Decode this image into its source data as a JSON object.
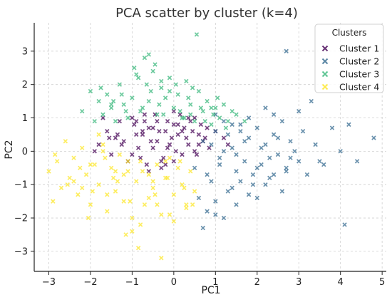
{
  "chart_data": {
    "type": "scatter",
    "title": "PCA scatter by cluster (k=4)",
    "xlabel": "PC1",
    "ylabel": "PC2",
    "xlim": [
      -3.35,
      5.1
    ],
    "ylim": [
      -3.6,
      3.85
    ],
    "xticks": [
      -3,
      -2,
      -1,
      0,
      1,
      2,
      3,
      4,
      5
    ],
    "yticks": [
      -3,
      -2,
      -1,
      0,
      1,
      2,
      3
    ],
    "grid": true,
    "marker": "x",
    "legend": {
      "title": "Clusters",
      "position": "top-right"
    },
    "series": [
      {
        "name": "Cluster 1",
        "color": "#440154",
        "x": [
          -1.8,
          -1.6,
          -1.5,
          -1.3,
          -1.2,
          -1.0,
          -0.9,
          -0.8,
          -0.7,
          -0.6,
          -0.5,
          -0.4,
          -0.3,
          -0.2,
          -0.1,
          0.0,
          0.1,
          0.2,
          0.3,
          0.4,
          0.5,
          0.6,
          0.7,
          -1.7,
          -1.4,
          -1.1,
          -0.95,
          -0.85,
          -0.75,
          -0.65,
          -0.55,
          -0.45,
          -0.35,
          -0.25,
          -0.15,
          -0.05,
          0.05,
          0.15,
          0.25,
          0.35,
          0.45,
          0.55,
          0.65,
          0.75,
          0.85,
          -1.9,
          -1.25,
          -0.7,
          -0.3,
          0.1,
          0.5,
          0.8,
          -1.55,
          -0.9,
          -0.4,
          0.2,
          0.6,
          -1.0,
          -0.5,
          0.0,
          -1.35,
          -0.15,
          0.35,
          -0.75,
          1.0,
          1.2,
          1.3,
          -0.6,
          -0.2,
          0.0
        ],
        "y": [
          0.2,
          0.6,
          -0.1,
          0.9,
          0.3,
          1.0,
          0.5,
          -0.2,
          1.1,
          0.7,
          0.1,
          0.9,
          -0.3,
          0.6,
          0.2,
          1.2,
          0.8,
          -0.1,
          0.4,
          0.9,
          0.0,
          0.5,
          0.3,
          1.0,
          0.4,
          -0.3,
          0.8,
          0.1,
          0.5,
          -0.4,
          0.3,
          1.1,
          0.6,
          -0.2,
          0.9,
          0.4,
          0.0,
          1.1,
          0.7,
          0.2,
          0.6,
          -0.1,
          0.8,
          0.4,
          0.1,
          0.0,
          0.2,
          0.9,
          -0.5,
          0.5,
          1.0,
          0.7,
          0.4,
          0.9,
          0.3,
          0.6,
          0.2,
          -0.1,
          0.7,
          -0.3,
          0.5,
          0.1,
          1.0,
          0.6,
          0.6,
          0.4,
          0.2,
          -0.6,
          -0.4,
          0.8
        ]
      },
      {
        "name": "Cluster 2",
        "color": "#31688e",
        "x": [
          0.5,
          0.7,
          0.9,
          1.0,
          1.1,
          1.2,
          1.3,
          1.4,
          1.5,
          1.6,
          1.7,
          1.8,
          1.9,
          2.0,
          2.1,
          2.2,
          2.3,
          2.4,
          2.5,
          2.6,
          2.7,
          2.8,
          2.9,
          3.0,
          3.1,
          3.2,
          3.4,
          3.6,
          3.8,
          4.0,
          4.2,
          4.4,
          4.8,
          0.6,
          0.8,
          1.0,
          1.2,
          1.4,
          1.6,
          1.8,
          2.0,
          2.2,
          2.4,
          2.6,
          2.8,
          3.0,
          3.3,
          0.9,
          1.1,
          1.3,
          1.5,
          1.7,
          1.9,
          2.1,
          2.3,
          2.5,
          2.7,
          0.7,
          1.0,
          1.5,
          2.0,
          0.8,
          1.2,
          1.6,
          2.4,
          3.5,
          2.7,
          2.2,
          1.8,
          4.1,
          1.0,
          1.4
        ],
        "y": [
          -0.5,
          0.3,
          -0.9,
          0.6,
          -0.2,
          0.9,
          -1.2,
          0.1,
          -0.6,
          0.8,
          -0.3,
          0.4,
          -1.0,
          0.7,
          -0.4,
          0.2,
          -0.8,
          0.5,
          -0.1,
          0.9,
          -0.6,
          0.3,
          0.0,
          -0.3,
          0.6,
          -0.7,
          0.2,
          -0.4,
          0.7,
          0.0,
          0.8,
          -0.3,
          0.4,
          -1.4,
          -1.8,
          -1.5,
          -2.0,
          -1.1,
          -0.9,
          -1.3,
          -0.5,
          -1.0,
          -0.7,
          -1.2,
          -0.2,
          1.2,
          1.5,
          0.2,
          -0.4,
          0.5,
          -0.1,
          0.3,
          -0.7,
          0.1,
          -0.2,
          0.4,
          -0.5,
          -2.3,
          -1.9,
          -1.6,
          -1.4,
          -0.7,
          0.0,
          0.6,
          1.1,
          -0.3,
          3.0,
          1.3,
          1.0,
          -2.2,
          1.1,
          0.8
        ]
      },
      {
        "name": "Cluster 3",
        "color": "#35b779",
        "x": [
          -2.2,
          -2.0,
          -1.9,
          -1.8,
          -1.7,
          -1.6,
          -1.5,
          -1.4,
          -1.3,
          -1.2,
          -1.1,
          -1.0,
          -0.9,
          -0.8,
          -0.7,
          -0.6,
          -0.5,
          -0.4,
          -0.3,
          -0.2,
          -0.1,
          0.0,
          0.1,
          0.2,
          0.3,
          0.4,
          0.5,
          0.6,
          0.7,
          0.8,
          0.9,
          1.0,
          1.1,
          1.2,
          1.3,
          1.4,
          -1.75,
          -1.45,
          -1.15,
          -0.85,
          -0.55,
          -0.25,
          0.05,
          0.35,
          0.65,
          0.95,
          1.25,
          -0.95,
          -0.65,
          -0.35,
          0.15,
          0.45,
          -1.25,
          -0.75,
          -0.45,
          0.25,
          0.75,
          1.05,
          -0.6,
          -0.3,
          0.4,
          0.9,
          -1.5,
          -0.1,
          0.55,
          1.5,
          1.7
        ],
        "y": [
          1.2,
          1.8,
          0.9,
          1.5,
          1.1,
          1.7,
          1.3,
          0.9,
          2.0,
          1.4,
          1.0,
          1.6,
          2.3,
          1.2,
          2.8,
          1.5,
          2.4,
          1.1,
          1.9,
          1.6,
          2.2,
          1.3,
          1.7,
          1.0,
          2.1,
          1.4,
          0.9,
          1.8,
          1.2,
          1.5,
          0.8,
          1.3,
          1.0,
          1.4,
          0.9,
          1.2,
          1.9,
          1.5,
          1.2,
          2.2,
          1.8,
          1.1,
          2.0,
          1.6,
          1.3,
          1.1,
          0.7,
          2.5,
          2.0,
          1.4,
          1.2,
          1.9,
          1.7,
          1.3,
          2.6,
          1.0,
          0.9,
          1.6,
          2.9,
          2.1,
          1.1,
          1.3,
          1.4,
          1.8,
          3.5,
          1.1,
          0.9
        ]
      },
      {
        "name": "Cluster 4",
        "color": "#fde725",
        "x": [
          -3.0,
          -2.9,
          -2.8,
          -2.7,
          -2.6,
          -2.5,
          -2.4,
          -2.3,
          -2.2,
          -2.1,
          -2.0,
          -1.9,
          -1.8,
          -1.7,
          -1.6,
          -1.5,
          -1.4,
          -1.3,
          -1.2,
          -1.1,
          -1.0,
          -0.9,
          -0.8,
          -0.7,
          -0.6,
          -0.5,
          -0.4,
          -0.3,
          -0.2,
          -0.1,
          0.0,
          0.1,
          0.2,
          0.3,
          0.4,
          0.5,
          -2.85,
          -2.55,
          -2.25,
          -1.95,
          -1.65,
          -1.35,
          -1.05,
          -0.75,
          -0.45,
          -0.15,
          0.15,
          0.45,
          -2.4,
          -2.0,
          -1.6,
          -1.2,
          -0.8,
          -0.4,
          0.0,
          0.3,
          -2.2,
          -1.8,
          -1.4,
          -1.0,
          -0.6,
          -0.2,
          -1.7,
          -1.1,
          -0.5,
          0.25,
          -1.15,
          -0.85,
          -0.3,
          -0.1,
          -2.05,
          -1.45
        ],
        "y": [
          -0.6,
          -1.5,
          -0.3,
          -1.1,
          0.3,
          -0.8,
          -0.2,
          -1.3,
          0.1,
          -0.7,
          -1.6,
          -0.4,
          -1.0,
          0.0,
          -1.8,
          -0.5,
          -1.2,
          -0.1,
          -1.5,
          -0.6,
          -2.0,
          -0.9,
          -0.3,
          -1.6,
          -0.7,
          -1.1,
          -0.4,
          -1.9,
          -0.8,
          -0.2,
          -1.3,
          -0.5,
          -1.0,
          -1.7,
          -0.6,
          -1.2,
          -0.1,
          -1.0,
          -0.5,
          -1.2,
          -0.2,
          -0.9,
          -1.5,
          -0.6,
          -1.3,
          -0.8,
          -0.3,
          -1.6,
          -0.9,
          -0.4,
          -1.3,
          -0.7,
          -2.2,
          -1.6,
          -2.1,
          -1.6,
          -1.1,
          0.5,
          -0.6,
          -2.4,
          -1.4,
          -0.3,
          0.2,
          -0.3,
          -0.9,
          -1.1,
          -2.5,
          -2.9,
          -3.2,
          -1.9,
          -2.0,
          -0.8
        ]
      }
    ]
  }
}
